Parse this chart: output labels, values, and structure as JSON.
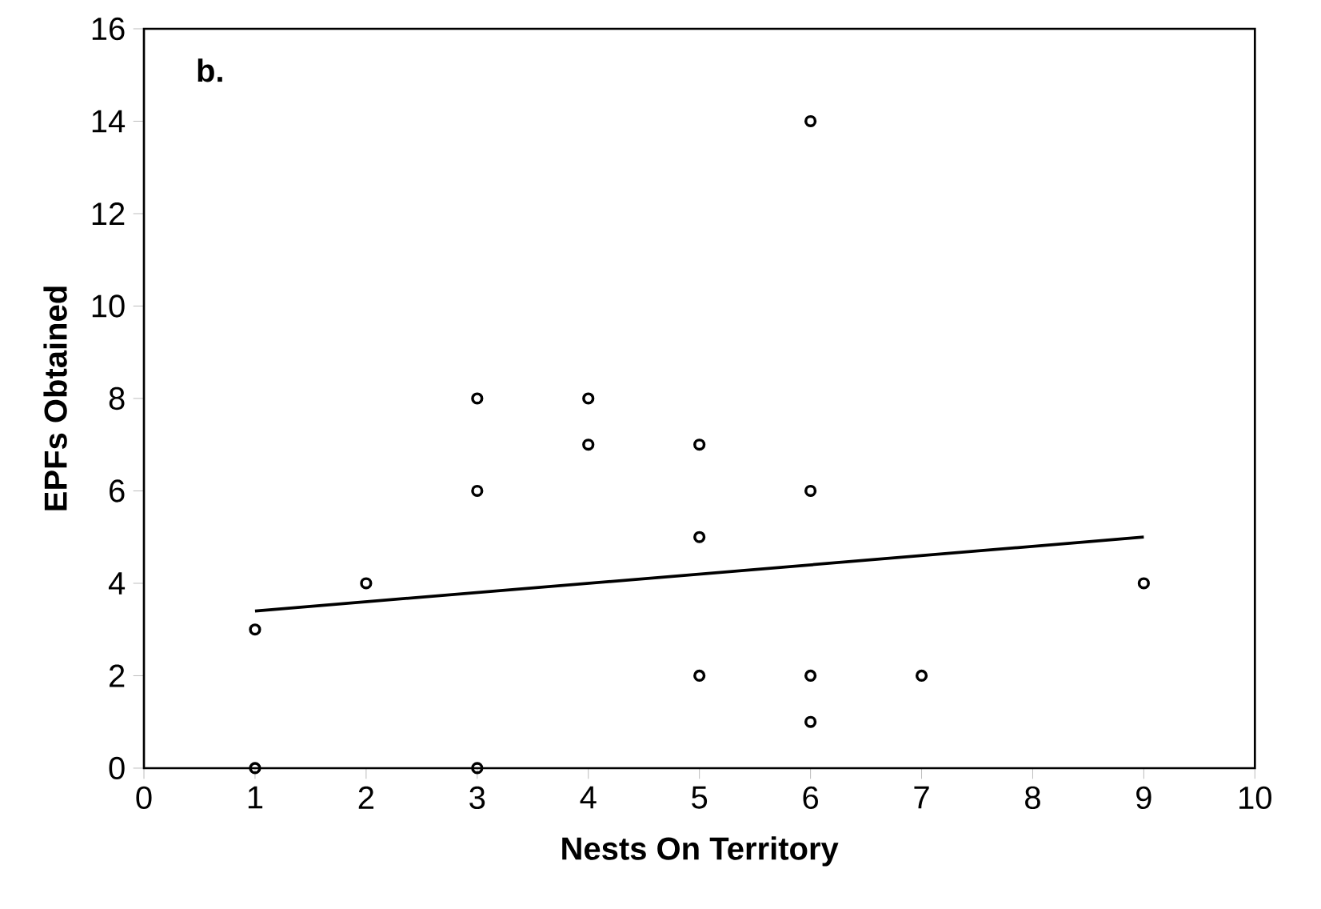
{
  "chart_data": {
    "type": "scatter",
    "xlabel": "Nests On Territory",
    "ylabel": "EPFs Obtained",
    "annotations": [
      "b."
    ],
    "xlim": [
      0,
      10
    ],
    "ylim": [
      0,
      16
    ],
    "xticks": [
      0,
      1,
      2,
      3,
      4,
      5,
      6,
      7,
      8,
      9,
      10
    ],
    "yticks": [
      0,
      2,
      4,
      6,
      8,
      10,
      12,
      14,
      16
    ],
    "grid": false,
    "series": [
      {
        "color": "#000000",
        "marker": "circle",
        "x": [
          1,
          1,
          2,
          3,
          3,
          3,
          4,
          4,
          5,
          5,
          5,
          6,
          6,
          6,
          6,
          7,
          9
        ],
        "values": [
          3,
          0,
          4,
          8,
          6,
          0,
          8,
          7,
          7,
          5,
          2,
          14,
          6,
          2,
          1,
          2,
          4
        ]
      },
      {
        "type": "line",
        "color": "#000000",
        "marker": "none",
        "x": [
          1,
          9
        ],
        "values": [
          3.4,
          5.0
        ]
      }
    ]
  }
}
